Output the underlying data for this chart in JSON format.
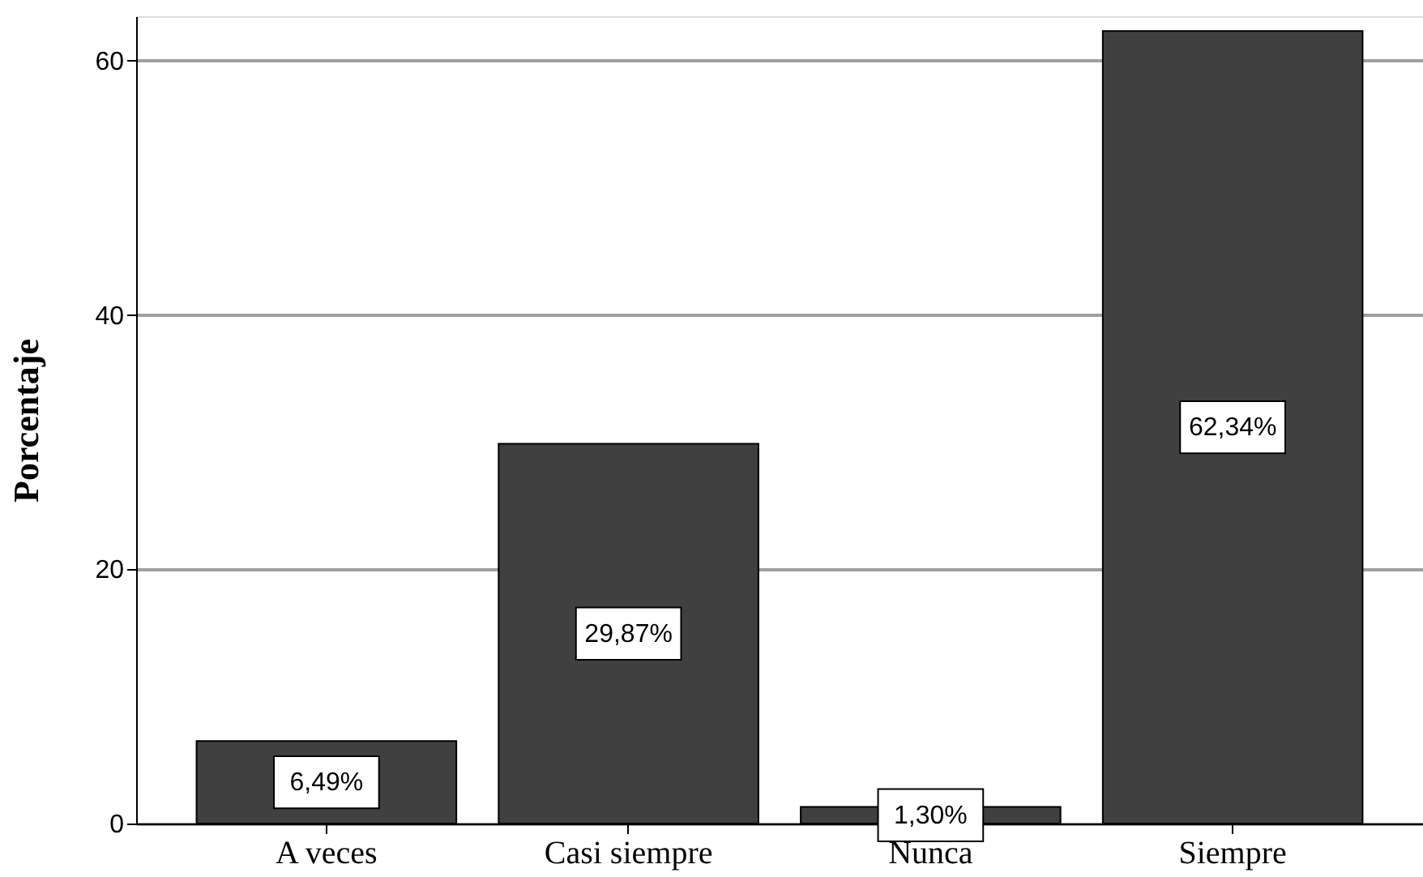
{
  "chart_data": {
    "type": "bar",
    "ylabel": "Porcentaje",
    "categories": [
      "A veces",
      "Casi siempre",
      "Nunca",
      "Siempre"
    ],
    "values": [
      6.49,
      29.87,
      1.3,
      62.34
    ],
    "value_labels": [
      "6,49%",
      "29,87%",
      "1,30%",
      "62,34%"
    ],
    "color": "#404040",
    "ylim": [
      0,
      63.5
    ],
    "yticks": [
      0,
      20,
      40,
      60
    ],
    "grid": "y"
  }
}
